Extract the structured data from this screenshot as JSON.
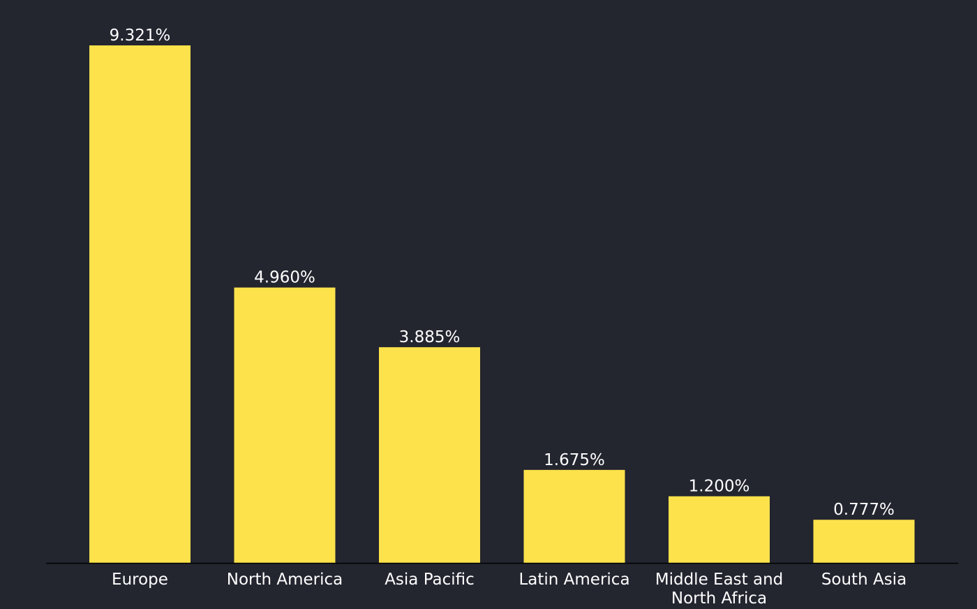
{
  "chart_data": {
    "type": "bar",
    "categories": [
      "Europe",
      "North America",
      "Asia Pacific",
      "Latin America",
      "Middle East and North Africa",
      "South Asia"
    ],
    "category_label_lines": [
      [
        "Europe"
      ],
      [
        "North America"
      ],
      [
        "Asia Pacific"
      ],
      [
        "Latin America"
      ],
      [
        "Middle East and",
        "North Africa"
      ],
      [
        "South Asia"
      ]
    ],
    "values": [
      9.321,
      4.96,
      3.885,
      1.675,
      1.2,
      0.777
    ],
    "value_labels": [
      "9.321%",
      "4.960%",
      "3.885%",
      "1.675%",
      "1.200%",
      "0.777%"
    ],
    "ylim": [
      0,
      9.321
    ],
    "grid": false,
    "legend": "none"
  },
  "colors": {
    "background": "#23252f",
    "bar": "#fde24b",
    "text": "#ffffff",
    "axis": "#000000"
  }
}
